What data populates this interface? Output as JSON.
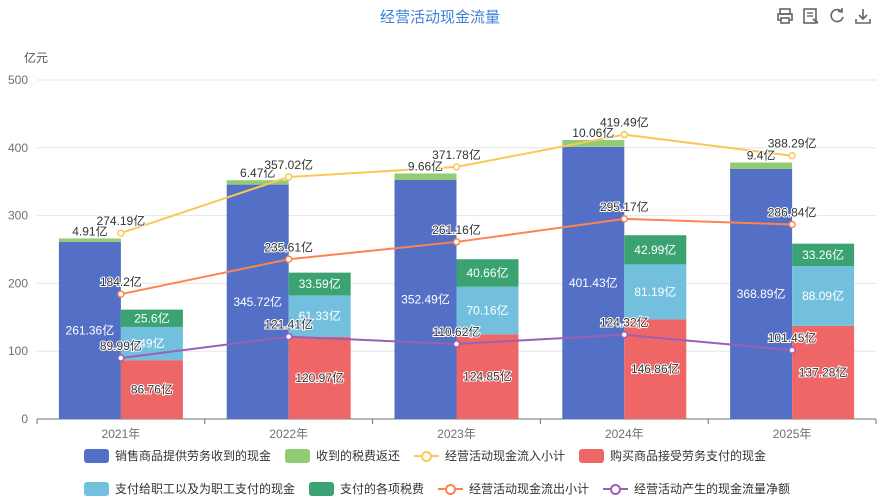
{
  "toolbar": {
    "icons": [
      "print-icon",
      "data-view-icon",
      "restore-icon",
      "download-icon"
    ]
  },
  "chart_data": {
    "type": "bar",
    "title": "经营活动现金流量",
    "ylabel": "亿元",
    "xlabel": "",
    "ylim": [
      0,
      500
    ],
    "yticks": [
      0,
      100,
      200,
      300,
      400,
      500
    ],
    "categories": [
      "2021年",
      "2022年",
      "2023年",
      "2024年",
      "2025年"
    ],
    "grid": true,
    "legend_position": "bottom",
    "series": [
      {
        "name": "销售商品提供劳务收到的现金",
        "kind": "bar",
        "stack": "inflow",
        "color": "#5470c6",
        "values": [
          261.36,
          345.72,
          352.49,
          401.43,
          368.89
        ],
        "labels": [
          "261.36亿",
          "345.72亿",
          "352.49亿",
          "401.43亿",
          "368.89亿"
        ]
      },
      {
        "name": "收到的税费返还",
        "kind": "bar",
        "stack": "inflow",
        "color": "#91cc75",
        "values": [
          4.91,
          6.47,
          9.66,
          10.06,
          9.4
        ],
        "labels": [
          "4.91亿",
          "6.47亿",
          "9.66亿",
          "10.06亿",
          "9.4亿"
        ]
      },
      {
        "name": "经营活动现金流入小计",
        "kind": "line",
        "color": "#fac858",
        "values": [
          274.19,
          357.02,
          371.78,
          419.49,
          388.29
        ],
        "labels": [
          "274.19亿",
          "357.02亿",
          "371.78亿",
          "419.49亿",
          "388.29亿"
        ]
      },
      {
        "name": "购买商品接受劳务支付的现金",
        "kind": "bar",
        "stack": "outflow",
        "color": "#ee6666",
        "values": [
          86.76,
          120.97,
          124.85,
          146.86,
          137.28
        ],
        "labels": [
          "86.76亿",
          "120.97亿",
          "124.85亿",
          "146.86亿",
          "137.28亿"
        ]
      },
      {
        "name": "支付给职工以及为职工支付的现金",
        "kind": "bar",
        "stack": "outflow",
        "color": "#73c0de",
        "values": [
          49,
          61.33,
          70.16,
          81.19,
          88.09
        ],
        "labels": [
          "49亿",
          "61.33亿",
          "70.16亿",
          "81.19亿",
          "88.09亿"
        ]
      },
      {
        "name": "支付的各项税费",
        "kind": "bar",
        "stack": "outflow",
        "color": "#3ba272",
        "values": [
          25.6,
          33.59,
          40.66,
          42.99,
          33.26
        ],
        "labels": [
          "25.6亿",
          "33.59亿",
          "40.66亿",
          "42.99亿",
          "33.26亿"
        ]
      },
      {
        "name": "经营活动现金流出小计",
        "kind": "line",
        "color": "#fc8452",
        "values": [
          184.2,
          235.61,
          261.16,
          295.17,
          286.84
        ],
        "labels": [
          "184.2亿",
          "235.61亿",
          "261.16亿",
          "295.17亿",
          "286.84亿"
        ]
      },
      {
        "name": "经营活动产生的现金流量净额",
        "kind": "line",
        "color": "#9a60b4",
        "values": [
          89.99,
          121.41,
          110.62,
          124.32,
          101.45
        ],
        "labels": [
          "89.99亿",
          "121.41亿",
          "110.62亿",
          "124.32亿",
          "101.45亿"
        ]
      }
    ]
  }
}
